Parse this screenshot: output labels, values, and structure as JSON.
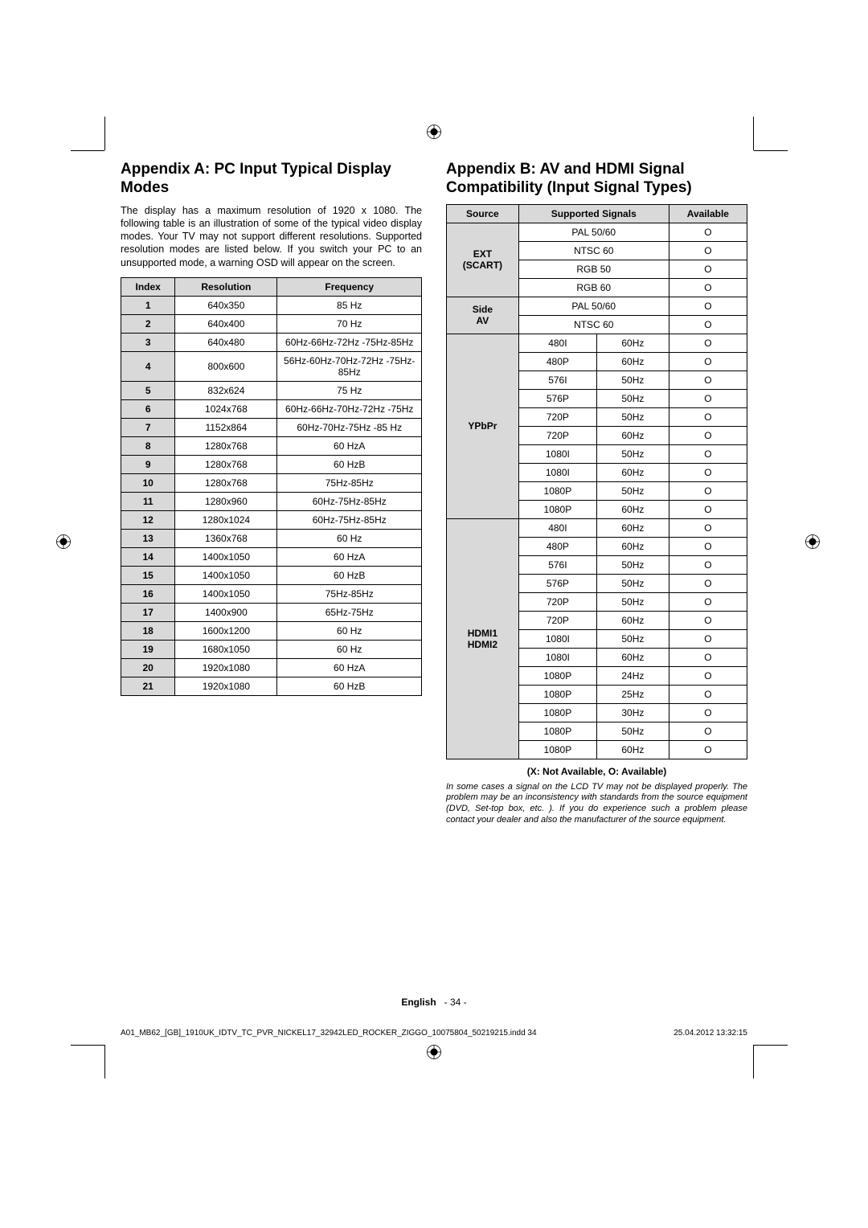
{
  "appendixA": {
    "title": "Appendix A: PC Input Typical Display Modes",
    "paragraph": "The display has a maximum resolution of 1920 x 1080. The following table is an illustration of some of the typical video display modes. Your TV may not support different resolutions. Supported resolution modes are listed below. If you switch your PC to an unsupported mode, a warning OSD will appear on the screen.",
    "headers": {
      "index": "Index",
      "resolution": "Resolution",
      "frequency": "Frequency"
    },
    "rows": [
      {
        "index": "1",
        "resolution": "640x350",
        "frequency": "85 Hz"
      },
      {
        "index": "2",
        "resolution": "640x400",
        "frequency": "70 Hz"
      },
      {
        "index": "3",
        "resolution": "640x480",
        "frequency": "60Hz-66Hz-72Hz -75Hz-85Hz"
      },
      {
        "index": "4",
        "resolution": "800x600",
        "frequency": "56Hz-60Hz-70Hz-72Hz -75Hz-85Hz"
      },
      {
        "index": "5",
        "resolution": "832x624",
        "frequency": "75 Hz"
      },
      {
        "index": "6",
        "resolution": "1024x768",
        "frequency": "60Hz-66Hz-70Hz-72Hz -75Hz"
      },
      {
        "index": "7",
        "resolution": "1152x864",
        "frequency": "60Hz-70Hz-75Hz -85 Hz"
      },
      {
        "index": "8",
        "resolution": "1280x768",
        "frequency": "60 HzA"
      },
      {
        "index": "9",
        "resolution": "1280x768",
        "frequency": "60 HzB"
      },
      {
        "index": "10",
        "resolution": "1280x768",
        "frequency": "75Hz-85Hz"
      },
      {
        "index": "11",
        "resolution": "1280x960",
        "frequency": "60Hz-75Hz-85Hz"
      },
      {
        "index": "12",
        "resolution": "1280x1024",
        "frequency": "60Hz-75Hz-85Hz"
      },
      {
        "index": "13",
        "resolution": "1360x768",
        "frequency": "60 Hz"
      },
      {
        "index": "14",
        "resolution": "1400x1050",
        "frequency": "60 HzA"
      },
      {
        "index": "15",
        "resolution": "1400x1050",
        "frequency": "60 HzB"
      },
      {
        "index": "16",
        "resolution": "1400x1050",
        "frequency": "75Hz-85Hz"
      },
      {
        "index": "17",
        "resolution": "1400x900",
        "frequency": "65Hz-75Hz"
      },
      {
        "index": "18",
        "resolution": "1600x1200",
        "frequency": "60 Hz"
      },
      {
        "index": "19",
        "resolution": "1680x1050",
        "frequency": "60 Hz"
      },
      {
        "index": "20",
        "resolution": "1920x1080",
        "frequency": "60 HzA"
      },
      {
        "index": "21",
        "resolution": "1920x1080",
        "frequency": "60 HzB"
      }
    ]
  },
  "appendixB": {
    "title": "Appendix B: AV and HDMI Signal Compatibility (Input Signal Types)",
    "headers": {
      "source": "Source",
      "signals": "Supported Signals",
      "available": "Available"
    },
    "groups": [
      {
        "source": "EXT (SCART)",
        "rows": [
          {
            "s1": "PAL 50/60",
            "s2": "",
            "a": "O"
          },
          {
            "s1": "NTSC 60",
            "s2": "",
            "a": "O"
          },
          {
            "s1": "RGB 50",
            "s2": "",
            "a": "O"
          },
          {
            "s1": "RGB 60",
            "s2": "",
            "a": "O"
          }
        ]
      },
      {
        "source": "Side AV",
        "rows": [
          {
            "s1": "PAL 50/60",
            "s2": "",
            "a": "O"
          },
          {
            "s1": "NTSC 60",
            "s2": "",
            "a": "O"
          }
        ]
      },
      {
        "source": "YPbPr",
        "rows": [
          {
            "s1": "480I",
            "s2": "60Hz",
            "a": "O"
          },
          {
            "s1": "480P",
            "s2": "60Hz",
            "a": "O"
          },
          {
            "s1": "576I",
            "s2": "50Hz",
            "a": "O"
          },
          {
            "s1": "576P",
            "s2": "50Hz",
            "a": "O"
          },
          {
            "s1": "720P",
            "s2": "50Hz",
            "a": "O"
          },
          {
            "s1": "720P",
            "s2": "60Hz",
            "a": "O"
          },
          {
            "s1": "1080I",
            "s2": "50Hz",
            "a": "O"
          },
          {
            "s1": "1080I",
            "s2": "60Hz",
            "a": "O"
          },
          {
            "s1": "1080P",
            "s2": "50Hz",
            "a": "O"
          },
          {
            "s1": "1080P",
            "s2": "60Hz",
            "a": "O"
          }
        ]
      },
      {
        "source": "HDMI1 HDMI2",
        "rows": [
          {
            "s1": "480I",
            "s2": "60Hz",
            "a": "O"
          },
          {
            "s1": "480P",
            "s2": "60Hz",
            "a": "O"
          },
          {
            "s1": "576I",
            "s2": "50Hz",
            "a": "O"
          },
          {
            "s1": "576P",
            "s2": "50Hz",
            "a": "O"
          },
          {
            "s1": "720P",
            "s2": "50Hz",
            "a": "O"
          },
          {
            "s1": "720P",
            "s2": "60Hz",
            "a": "O"
          },
          {
            "s1": "1080I",
            "s2": "50Hz",
            "a": "O"
          },
          {
            "s1": "1080I",
            "s2": "60Hz",
            "a": "O"
          },
          {
            "s1": "1080P",
            "s2": "24Hz",
            "a": "O"
          },
          {
            "s1": "1080P",
            "s2": "25Hz",
            "a": "O"
          },
          {
            "s1": "1080P",
            "s2": "30Hz",
            "a": "O"
          },
          {
            "s1": "1080P",
            "s2": "50Hz",
            "a": "O"
          },
          {
            "s1": "1080P",
            "s2": "60Hz",
            "a": "O"
          }
        ]
      }
    ],
    "legend": "(X: Not Available, O: Available)",
    "note": "In some cases a signal on the LCD TV may not be displayed properly. The problem may be an inconsistency with standards from the source equipment (DVD, Set-top box, etc. ). If you do experience such a problem please contact your dealer and also the manufacturer of the source equipment."
  },
  "footer": {
    "language": "English",
    "page": "- 34 -",
    "printfile": "A01_MB62_[GB]_1910UK_IDTV_TC_PVR_NICKEL17_32942LED_ROCKER_ZIGGO_10075804_50219215.indd   34",
    "printdate": "25.04.2012   13:32:15"
  }
}
